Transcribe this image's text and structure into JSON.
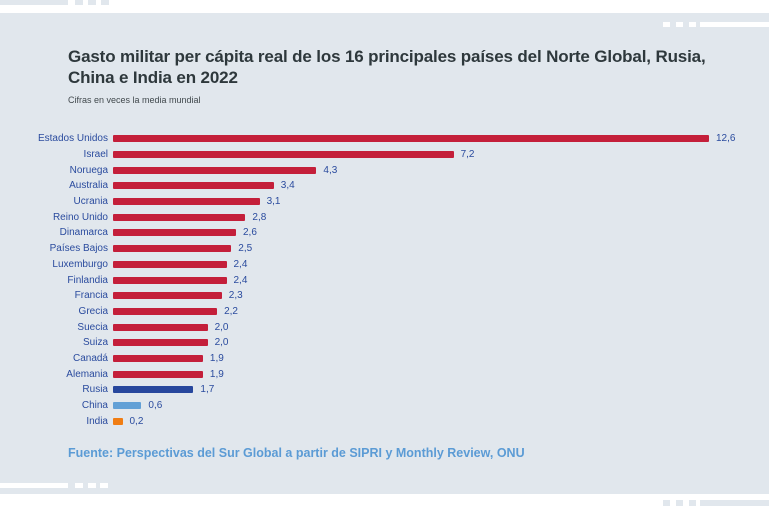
{
  "header": {
    "title": "Gasto militar per cápita real de los 16 principales países del Norte Global, Rusia, China e India en 2022",
    "subtitle": "Cifras en veces la media mundial"
  },
  "footer": {
    "source": "Fuente: Perspectivas del Sur Global a partir de SIPRI y Monthly Review, ONU"
  },
  "colors": {
    "card_background": "#E1E7ED",
    "page_background": "#FFFFFF",
    "bar_default_red": "#C41F3A",
    "bar_russia_navy": "#27479D",
    "bar_china_blue": "#62A0D6",
    "bar_india_orange": "#F07D13",
    "axis_label_navy": "#2A4B9E",
    "title_text": "#2E383C",
    "source_blue": "#5B9BD5"
  },
  "chart_data": {
    "type": "bar",
    "orientation": "horizontal",
    "title": "Gasto militar per cápita real de los 16 principales países del Norte Global, Rusia, China e India en 2022",
    "subtitle": "Cifras en veces la media mundial",
    "xlabel": "",
    "ylabel": "",
    "unit": "veces la media mundial",
    "xlim": [
      0,
      13
    ],
    "grid": false,
    "legend": false,
    "value_labels_shown": true,
    "decimal_separator": "comma",
    "categories": [
      "Estados Unidos",
      "Israel",
      "Noruega",
      "Australia",
      "Ucrania",
      "Reino Unido",
      "Dinamarca",
      "Países Bajos",
      "Luxemburgo",
      "Finlandia",
      "Francia",
      "Grecia",
      "Suecia",
      "Suiza",
      "Canadá",
      "Alemania",
      "Rusia",
      "China",
      "India"
    ],
    "values": [
      12.6,
      7.2,
      4.3,
      3.4,
      3.1,
      2.8,
      2.6,
      2.5,
      2.4,
      2.4,
      2.3,
      2.2,
      2.0,
      2.0,
      1.9,
      1.9,
      1.7,
      0.6,
      0.2
    ],
    "value_labels": [
      "12,6",
      "7,2",
      "4,3",
      "3,4",
      "3,1",
      "2,8",
      "2,6",
      "2,5",
      "2,4",
      "2,4",
      "2,3",
      "2,2",
      "2,0",
      "2,0",
      "1,9",
      "1,9",
      "1,7",
      "0,6",
      "0,2"
    ],
    "bar_colors": [
      "#C41F3A",
      "#C41F3A",
      "#C41F3A",
      "#C41F3A",
      "#C41F3A",
      "#C41F3A",
      "#C41F3A",
      "#C41F3A",
      "#C41F3A",
      "#C41F3A",
      "#C41F3A",
      "#C41F3A",
      "#C41F3A",
      "#C41F3A",
      "#C41F3A",
      "#C41F3A",
      "#27479D",
      "#62A0D6",
      "#F07D13"
    ]
  }
}
